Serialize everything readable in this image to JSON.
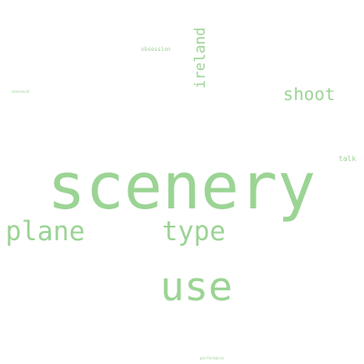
{
  "colors": {
    "word": "#9bd494",
    "background": "#ffffff"
  },
  "words": {
    "scenery": "scenery",
    "use": "use",
    "plane": "plane",
    "type": "type",
    "shoot": "shoot",
    "ireland": "ireland",
    "obsession": "obsession",
    "talk": "talk",
    "nonesuch": "nonesuch",
    "perform": "performance"
  }
}
